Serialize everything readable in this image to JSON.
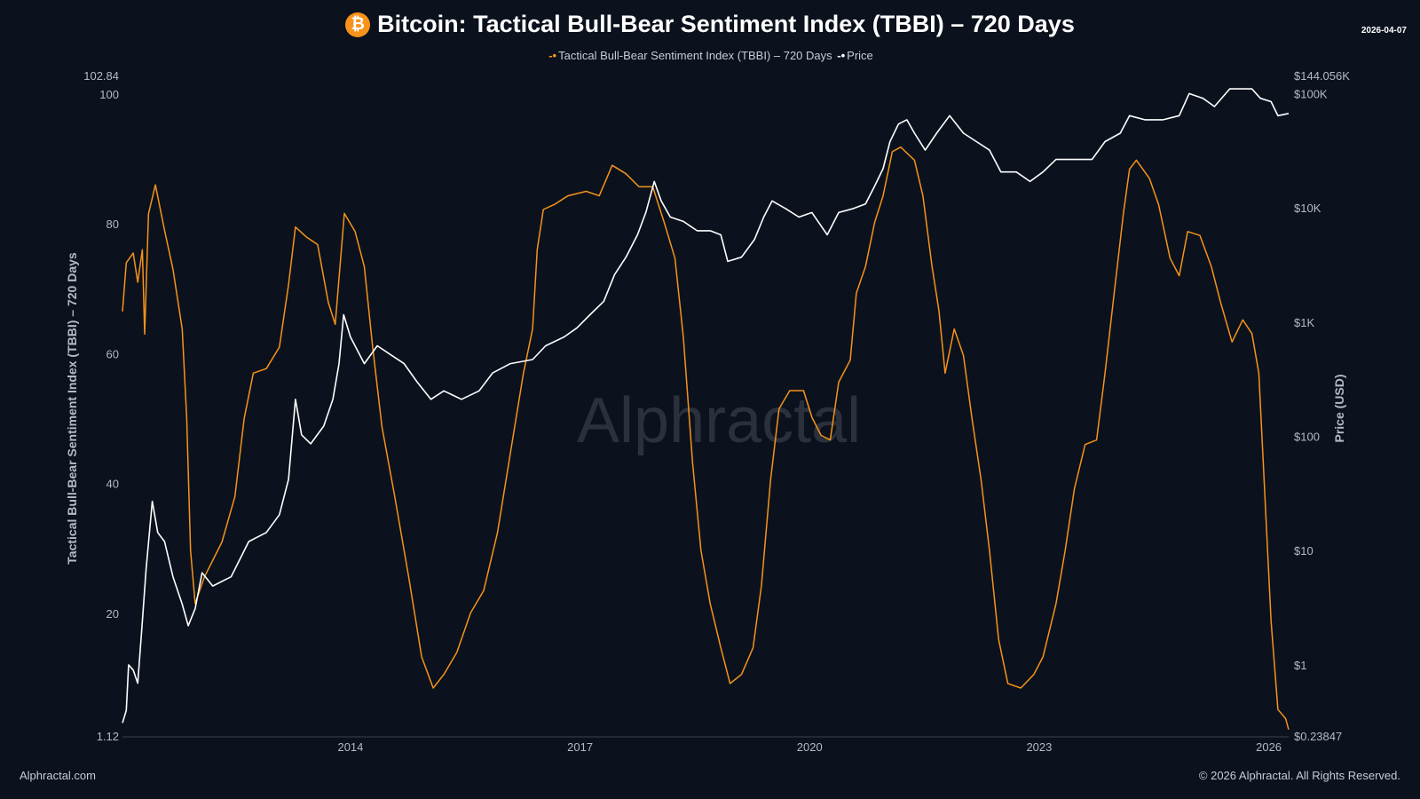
{
  "header": {
    "title": "Bitcoin: Tactical Bull-Bear Sentiment Index (TBBI) – 720 Days",
    "date": "2026-04-07",
    "icon": "bitcoin-icon"
  },
  "footer": {
    "left": "Alphractal.com",
    "right": "© 2026 Alphractal. All Rights Reserved."
  },
  "watermark": "Alphractal",
  "chart_data": {
    "type": "line",
    "title": "Bitcoin: Tactical Bull-Bear Sentiment Index (TBBI) – 720 Days",
    "legend_position": "top-center",
    "grid": false,
    "x_axis": {
      "type": "time",
      "range": [
        2011.02,
        2026.26
      ],
      "ticks": [
        "2014",
        "2017",
        "2020",
        "2023",
        "2026"
      ],
      "tick_values": [
        2014,
        2017,
        2020,
        2023,
        2026
      ]
    },
    "y_left": {
      "label": "Tactical Bull-Bear Sentiment Index (TBBI) – 720 Days",
      "range": [
        1.12,
        102.84
      ],
      "ticks": [
        "1.12",
        "20",
        "40",
        "60",
        "80",
        "100",
        "102.84"
      ],
      "tick_values": [
        1.12,
        20,
        40,
        60,
        80,
        100,
        102.84
      ]
    },
    "y_right": {
      "label": "Price (USD)",
      "scale": "log",
      "range": [
        0.23847,
        144056
      ],
      "ticks": [
        "$0.23847",
        "$1",
        "$10",
        "$100",
        "$1K",
        "$10K",
        "$100K",
        "$144.056K"
      ],
      "tick_values": [
        0.23847,
        1,
        10,
        100,
        1000,
        10000,
        100000,
        144056
      ]
    },
    "series": [
      {
        "name": "Tactical Bull-Bear Sentiment Index (TBBI) – 720 Days",
        "axis": "left",
        "color": "#f7931a",
        "x": [
          2011.02,
          2011.07,
          2011.16,
          2011.22,
          2011.28,
          2011.31,
          2011.36,
          2011.45,
          2011.57,
          2011.68,
          2011.8,
          2011.86,
          2011.91,
          2011.97,
          2012.09,
          2012.32,
          2012.49,
          2012.61,
          2012.73,
          2012.9,
          2013.07,
          2013.19,
          2013.28,
          2013.42,
          2013.57,
          2013.71,
          2013.8,
          2013.92,
          2014.06,
          2014.18,
          2014.29,
          2014.41,
          2014.58,
          2014.76,
          2014.93,
          2015.08,
          2015.22,
          2015.39,
          2015.57,
          2015.74,
          2015.92,
          2016.09,
          2016.26,
          2016.38,
          2016.44,
          2016.52,
          2016.67,
          2016.84,
          2017.08,
          2017.25,
          2017.42,
          2017.6,
          2017.77,
          2017.95,
          2018.1,
          2018.24,
          2018.35,
          2018.47,
          2018.58,
          2018.7,
          2018.84,
          2018.96,
          2019.11,
          2019.26,
          2019.37,
          2019.49,
          2019.6,
          2019.74,
          2019.92,
          2020.03,
          2020.15,
          2020.27,
          2020.38,
          2020.53,
          2020.61,
          2020.73,
          2020.85,
          2020.96,
          2021.08,
          2021.19,
          2021.37,
          2021.48,
          2021.6,
          2021.69,
          2021.77,
          2021.89,
          2022.01,
          2022.12,
          2022.24,
          2022.35,
          2022.47,
          2022.59,
          2022.76,
          2022.93,
          2023.05,
          2023.22,
          2023.34,
          2023.46,
          2023.6,
          2023.75,
          2023.86,
          2023.98,
          2024.1,
          2024.18,
          2024.27,
          2024.44,
          2024.56,
          2024.71,
          2024.83,
          2024.94,
          2025.1,
          2025.25,
          2025.37,
          2025.52,
          2025.66,
          2025.78,
          2025.87,
          2025.95,
          2026.03,
          2026.12,
          2026.22,
          2026.26
        ],
        "values": [
          66.5,
          74,
          75.5,
          71,
          76,
          63,
          81.5,
          86,
          79,
          73,
          63.8,
          50,
          29.7,
          21.5,
          25.6,
          31,
          38,
          50,
          57,
          57.7,
          61,
          70.6,
          79.5,
          78,
          76.8,
          67.9,
          64.5,
          81.6,
          78.8,
          73.4,
          61,
          48.8,
          37.9,
          25.6,
          13.3,
          8.5,
          10.6,
          14,
          20.1,
          23.5,
          32.4,
          44.7,
          57,
          63.8,
          76,
          82.2,
          83,
          84.3,
          85,
          84.3,
          89,
          87.7,
          85.7,
          85.7,
          80.2,
          74.7,
          62.5,
          43.3,
          29.7,
          21.5,
          14.7,
          9.2,
          10.6,
          14.7,
          24.2,
          40.6,
          51.5,
          54.3,
          54.3,
          50.2,
          47.4,
          46.7,
          55.6,
          59,
          69.3,
          73.4,
          80.2,
          84.3,
          91.1,
          91.8,
          89.8,
          84.3,
          73.4,
          66.6,
          57,
          63.8,
          59.7,
          50.2,
          40.6,
          29.7,
          16,
          9.2,
          8.5,
          10.6,
          13.3,
          21.5,
          29.7,
          39.2,
          46,
          46.7,
          57,
          69.3,
          81.6,
          88.4,
          89.8,
          87,
          83,
          74.7,
          72,
          78.8,
          78.2,
          73.4,
          67.9,
          61.8,
          65.2,
          63.1,
          57,
          37.9,
          18.8,
          5.2,
          3.8,
          2.1
        ]
      },
      {
        "name": "Price",
        "axis": "right",
        "color": "#ffffff",
        "x": [
          2011.02,
          2011.07,
          2011.1,
          2011.16,
          2011.22,
          2011.28,
          2011.33,
          2011.41,
          2011.48,
          2011.57,
          2011.68,
          2011.8,
          2011.88,
          2011.97,
          2012.06,
          2012.2,
          2012.44,
          2012.67,
          2012.9,
          2013.07,
          2013.19,
          2013.28,
          2013.36,
          2013.48,
          2013.65,
          2013.77,
          2013.85,
          2013.91,
          2014.0,
          2014.18,
          2014.35,
          2014.52,
          2014.7,
          2014.87,
          2015.05,
          2015.22,
          2015.45,
          2015.68,
          2015.86,
          2016.09,
          2016.38,
          2016.55,
          2016.79,
          2016.96,
          2017.13,
          2017.31,
          2017.45,
          2017.6,
          2017.75,
          2017.86,
          2017.97,
          2018.06,
          2018.18,
          2018.35,
          2018.53,
          2018.7,
          2018.84,
          2018.93,
          2019.11,
          2019.28,
          2019.4,
          2019.51,
          2019.69,
          2019.86,
          2020.03,
          2020.23,
          2020.38,
          2020.56,
          2020.73,
          2020.85,
          2020.96,
          2021.05,
          2021.16,
          2021.27,
          2021.37,
          2021.51,
          2021.66,
          2021.83,
          2022.01,
          2022.18,
          2022.35,
          2022.5,
          2022.7,
          2022.88,
          2023.05,
          2023.22,
          2023.46,
          2023.69,
          2023.86,
          2024.06,
          2024.18,
          2024.38,
          2024.62,
          2024.83,
          2024.96,
          2025.14,
          2025.29,
          2025.49,
          2025.66,
          2025.78,
          2025.89,
          2026.03,
          2026.12,
          2026.26
        ],
        "values": [
          0.31,
          0.4,
          1.0,
          0.9,
          0.69,
          2.4,
          7,
          27,
          14.4,
          12,
          5.9,
          3.4,
          2.2,
          3.1,
          6.4,
          4.9,
          5.9,
          12,
          14.4,
          20.6,
          42,
          211,
          103,
          86,
          123,
          211,
          433,
          1160,
          740,
          433,
          620,
          520,
          433,
          300,
          211,
          250,
          211,
          250,
          360,
          433,
          470,
          620,
          740,
          890,
          1160,
          1520,
          2600,
          3700,
          5800,
          9100,
          17000,
          11500,
          8300,
          7600,
          6300,
          6300,
          5800,
          3400,
          3700,
          5300,
          8300,
          11500,
          9800,
          8300,
          9100,
          5800,
          9100,
          9800,
          10800,
          15500,
          22000,
          38000,
          54000,
          59000,
          45000,
          32000,
          45000,
          64000,
          45000,
          38000,
          32000,
          20600,
          20600,
          17000,
          20600,
          26500,
          26500,
          26500,
          38000,
          45000,
          64000,
          59000,
          59000,
          64000,
          100000,
          91000,
          77000,
          110000,
          110000,
          110000,
          91000,
          85000,
          64000,
          67000
        ]
      }
    ]
  }
}
